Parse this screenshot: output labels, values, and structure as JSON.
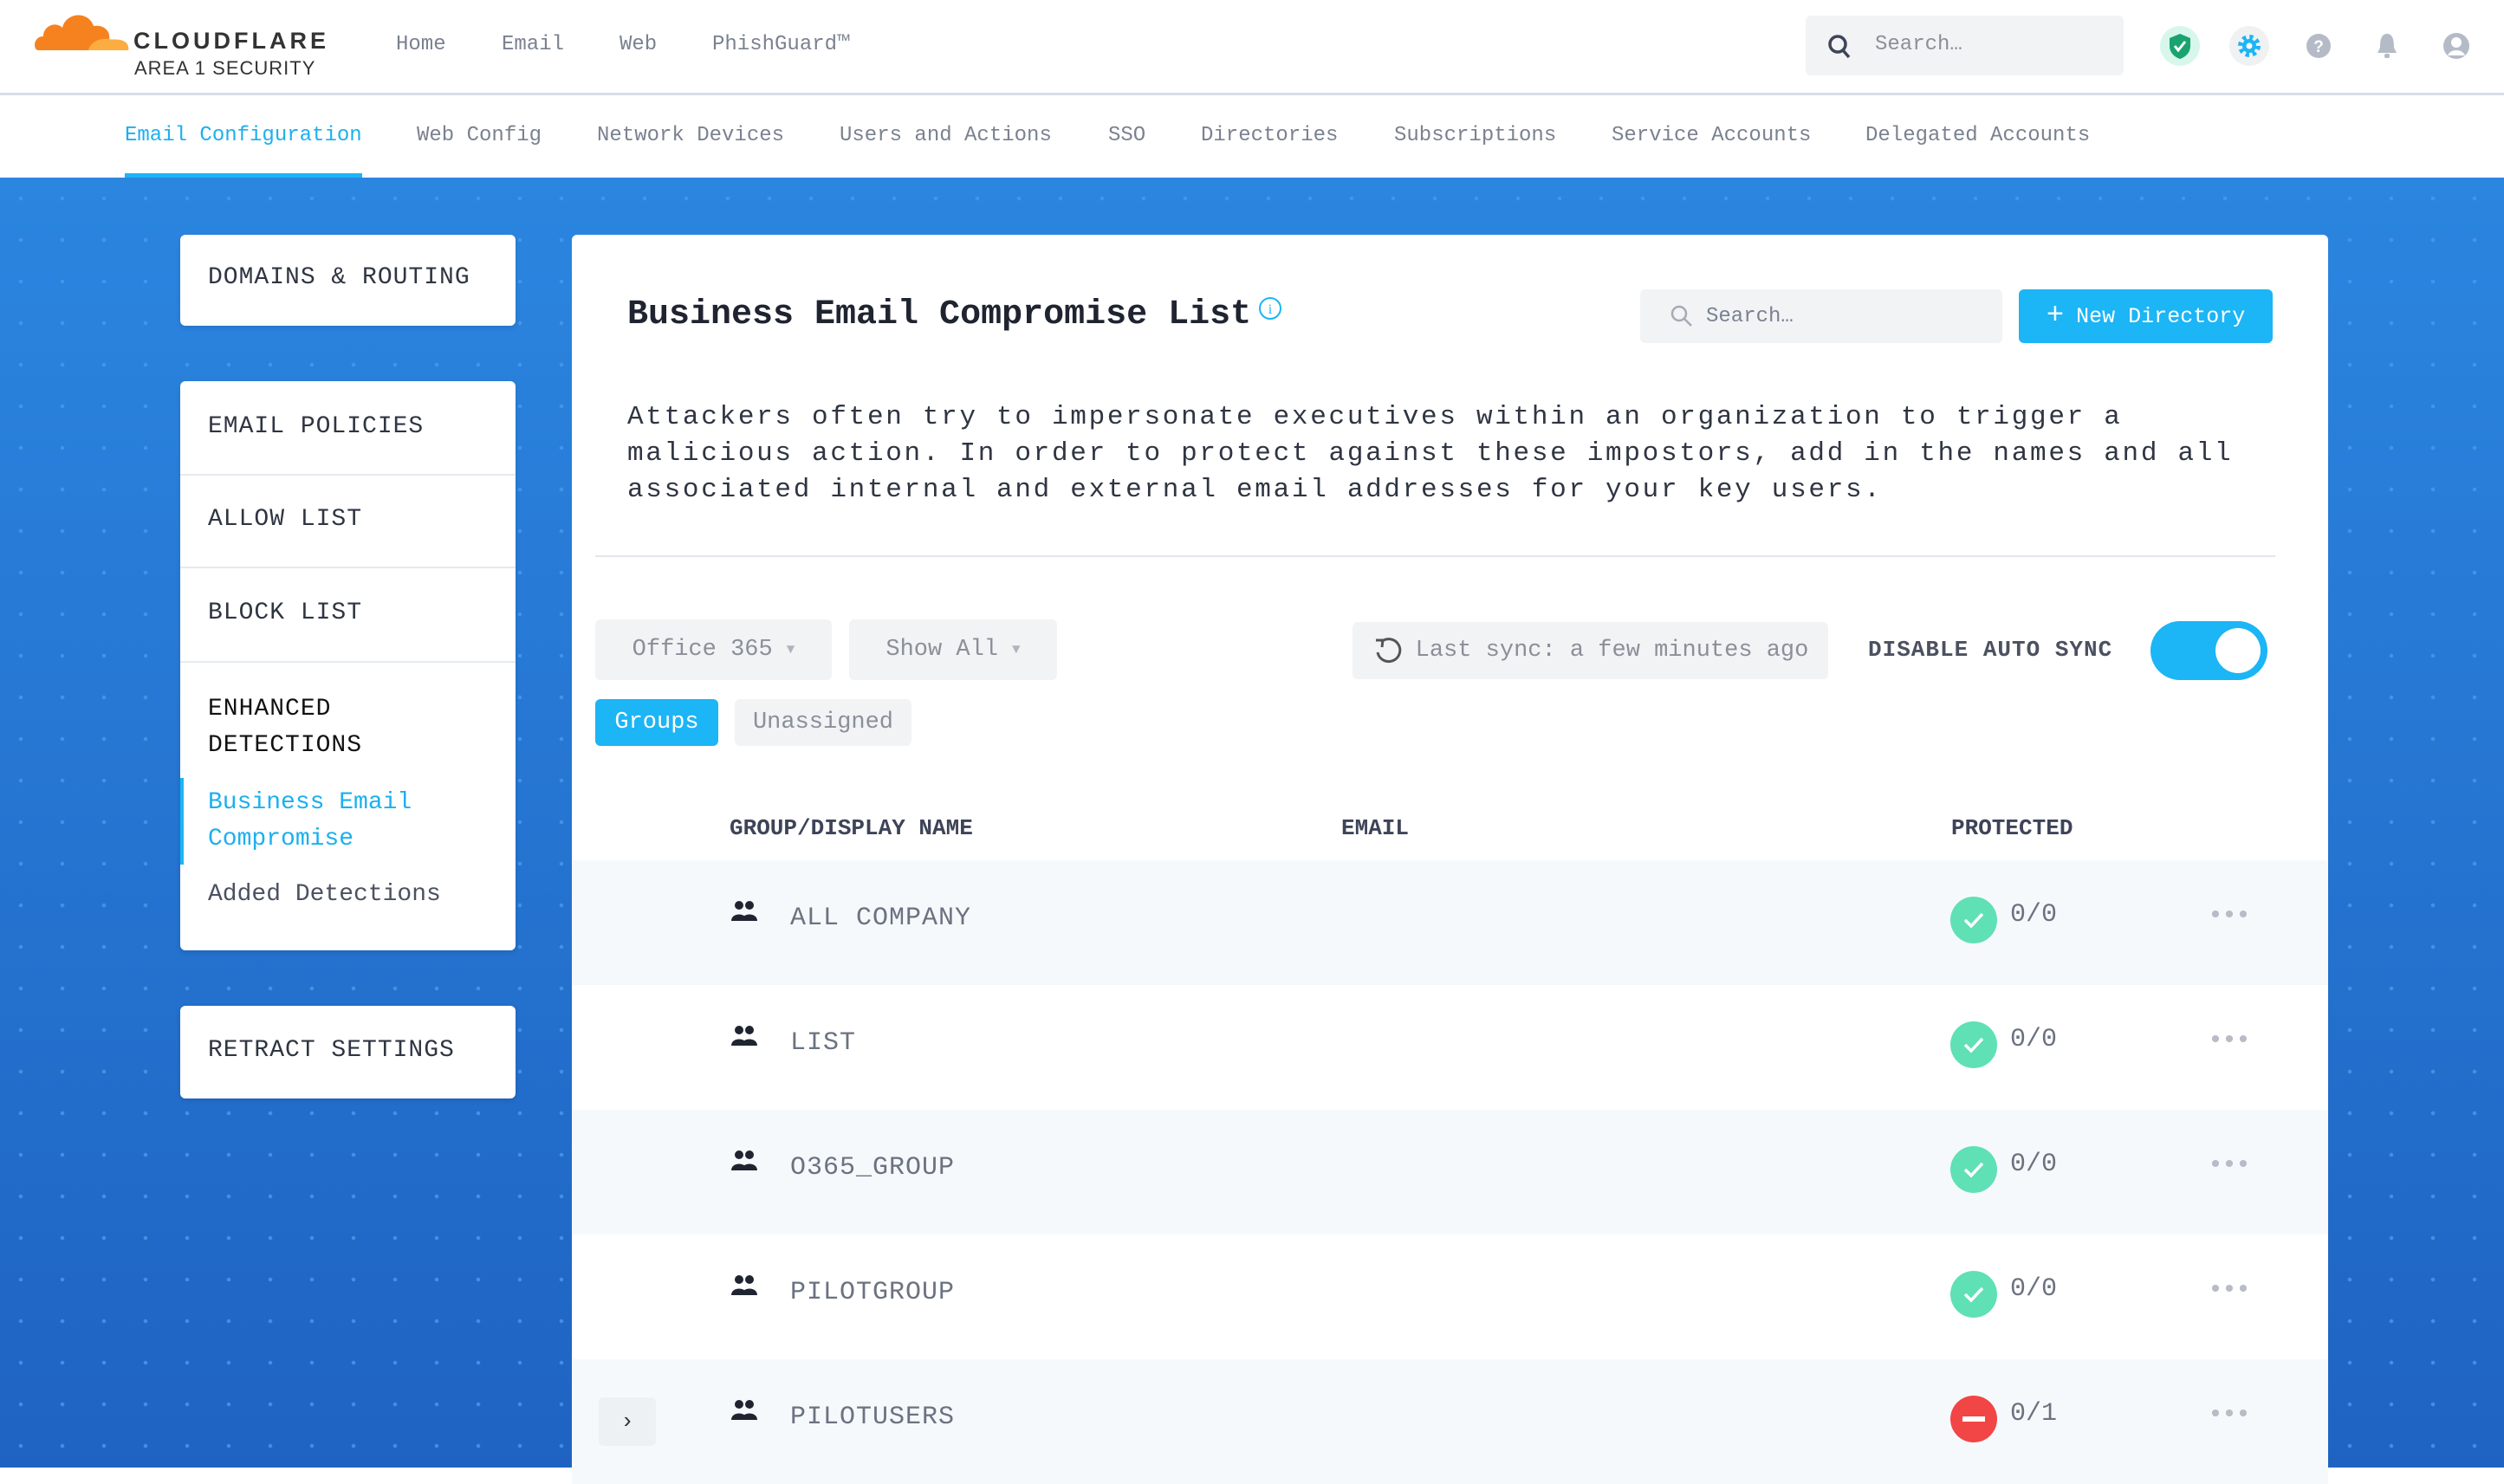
{
  "header": {
    "brand": "CLOUDFLARE",
    "subbrand": "AREA 1 SECURITY",
    "nav": [
      "Home",
      "Email",
      "Web",
      "PhishGuard™"
    ],
    "search_placeholder": "Search…",
    "icons": [
      "shield-check-icon",
      "gear-icon",
      "help-icon",
      "bell-icon",
      "user-icon"
    ]
  },
  "subnav": {
    "items": [
      "Email Configuration",
      "Web Config",
      "Network Devices",
      "Users and Actions",
      "SSO",
      "Directories",
      "Subscriptions",
      "Service Accounts",
      "Delegated Accounts"
    ],
    "active": "Email Configuration"
  },
  "sidebar": {
    "domains": "DOMAINS & ROUTING",
    "email_policies": "EMAIL POLICIES",
    "allow_list": "ALLOW LIST",
    "block_list": "BLOCK LIST",
    "enhanced": "ENHANCED DETECTIONS",
    "bec": "Business Email Compromise",
    "added": "Added Detections",
    "retract": "RETRACT SETTINGS"
  },
  "main": {
    "title": "Business Email Compromise List",
    "search_placeholder": "Search…",
    "new_button": "New Directory",
    "description": "Attackers often try to impersonate executives within an organization to trigger a malicious action. In order to protect against these impostors, add in the names and all associated internal and external email addresses for your key users.",
    "source": "Office 365",
    "filter": "Show All",
    "last_sync": "Last sync: a few minutes ago",
    "auto_sync_label": "DISABLE AUTO SYNC",
    "auto_sync_on": true,
    "tabs": [
      "Groups",
      "Unassigned"
    ],
    "active_tab": "Groups",
    "columns": [
      "GROUP/DISPLAY NAME",
      "EMAIL",
      "PROTECTED"
    ],
    "rows": [
      {
        "name": "ALL COMPANY",
        "protected": "0/0",
        "status": "ok"
      },
      {
        "name": "LIST",
        "protected": "0/0",
        "status": "ok"
      },
      {
        "name": "O365_GROUP",
        "protected": "0/0",
        "status": "ok"
      },
      {
        "name": "PILOTGROUP",
        "protected": "0/0",
        "status": "ok"
      },
      {
        "name": "PILOTUSERS",
        "protected": "0/1",
        "status": "blocked",
        "expandable": true
      }
    ]
  },
  "colors": {
    "accent": "#1cb5f5",
    "ok": "#5fe0b5",
    "error": "#f24545",
    "brand_orange": "#f6821f"
  }
}
